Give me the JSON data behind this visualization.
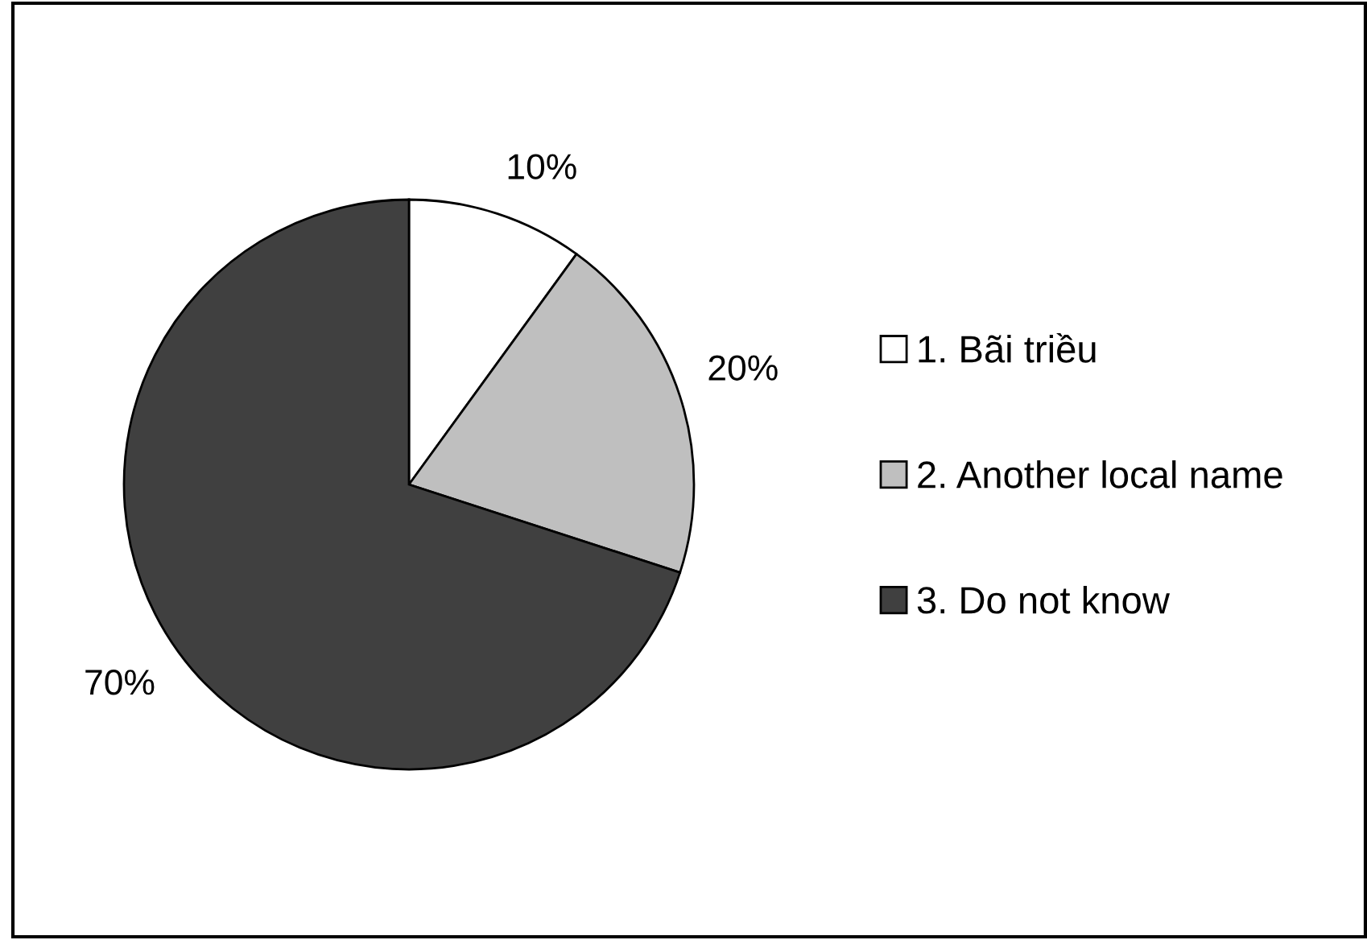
{
  "chart_data": {
    "type": "pie",
    "categories": [
      "1. Bãi triều",
      "2. Another local name",
      "3. Do not know"
    ],
    "values": [
      10,
      20,
      70
    ],
    "value_labels": [
      "10%",
      "20%",
      "70%"
    ],
    "colors": [
      "#ffffff",
      "#bfbfbf",
      "#404040"
    ],
    "legend": "right"
  }
}
